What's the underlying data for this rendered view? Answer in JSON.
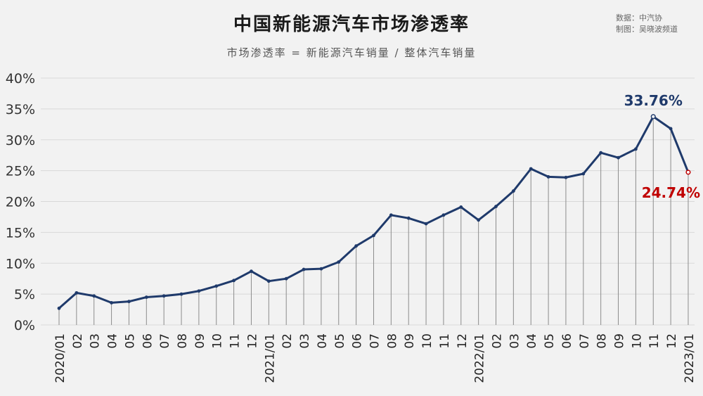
{
  "header": {
    "title": "中国新能源汽车市场渗透率",
    "subtitle": "市场渗透率 = 新能源汽车销量 / 整体汽车销量",
    "source_line": "数据：中汽协",
    "maker_line": "制图：吴晓波频道"
  },
  "colors": {
    "background": "#f2f2f2",
    "line": "#1f3a6b",
    "drop_line": "#8c8c8c",
    "grid": "#d9d9d9",
    "highlight_peak": "#1f3a6b",
    "highlight_last": "#c00000"
  },
  "chart_data": {
    "type": "line",
    "title": "中国新能源汽车市场渗透率",
    "subtitle": "市场渗透率 = 新能源汽车销量 / 整体汽车销量",
    "ylim": [
      0,
      40
    ],
    "yticks": [
      0,
      5,
      10,
      15,
      20,
      25,
      30,
      35,
      40
    ],
    "ytick_labels": [
      "0%",
      "5%",
      "10%",
      "15%",
      "20%",
      "25%",
      "30%",
      "35%",
      "40%"
    ],
    "grid": true,
    "x": [
      "2020/01",
      "02",
      "03",
      "04",
      "05",
      "06",
      "07",
      "08",
      "09",
      "10",
      "11",
      "12",
      "2021/01",
      "02",
      "03",
      "04",
      "05",
      "06",
      "07",
      "08",
      "09",
      "10",
      "11",
      "12",
      "2022/01",
      "02",
      "03",
      "04",
      "05",
      "06",
      "07",
      "08",
      "09",
      "10",
      "11",
      "12",
      "2023/01"
    ],
    "series": [
      {
        "values": [
          2.7,
          5.2,
          4.7,
          3.6,
          3.8,
          4.5,
          4.7,
          5.0,
          5.5,
          6.3,
          7.2,
          8.7,
          7.1,
          7.5,
          9.0,
          9.1,
          10.2,
          12.8,
          14.5,
          17.8,
          17.3,
          16.4,
          17.8,
          19.1,
          17.0,
          19.2,
          21.7,
          25.3,
          24.0,
          23.9,
          24.5,
          27.9,
          27.1,
          28.5,
          33.76,
          31.8,
          24.74
        ]
      }
    ],
    "annotations": [
      {
        "index": 34,
        "label": "33.76%",
        "color": "#1f3a6b"
      },
      {
        "index": 36,
        "label": "24.74%",
        "color": "#c00000"
      }
    ]
  }
}
